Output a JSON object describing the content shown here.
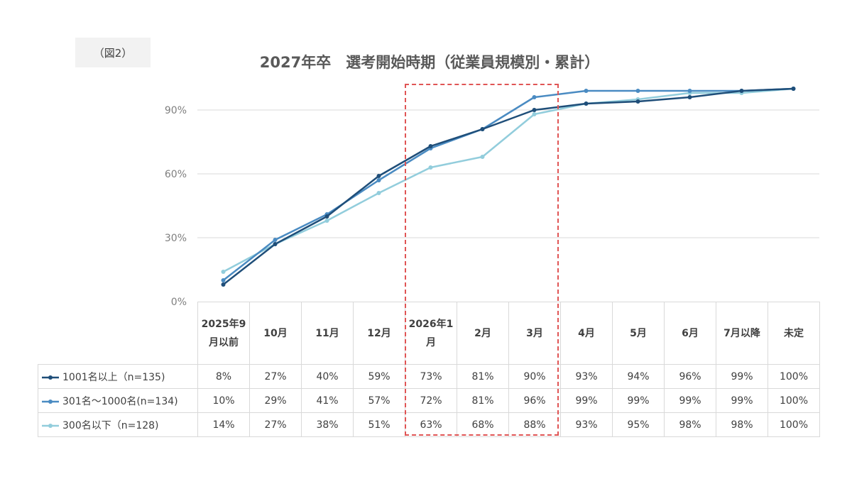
{
  "figure_label": "（図2）",
  "chart_data": {
    "type": "line",
    "title": "2027年卒　選考開始時期（従業員規模別・累計）",
    "categories": [
      "2025年9月以前",
      "10月",
      "11月",
      "12月",
      "2026年1月",
      "2月",
      "3月",
      "4月",
      "5月",
      "6月",
      "7月以降",
      "未定"
    ],
    "y_ticks": [
      "0%",
      "30%",
      "60%",
      "90%"
    ],
    "ylim": [
      0,
      100
    ],
    "grid": "horizontal",
    "series": [
      {
        "name": "1001名以上（n=135)",
        "color": "#1f4e79",
        "values": [
          8,
          27,
          40,
          59,
          73,
          81,
          90,
          93,
          94,
          96,
          99,
          100
        ],
        "labels": [
          "8%",
          "27%",
          "40%",
          "59%",
          "73%",
          "81%",
          "90%",
          "93%",
          "94%",
          "96%",
          "99%",
          "100%"
        ]
      },
      {
        "name": "301名～1000名(n=134)",
        "color": "#4a8bc2",
        "values": [
          10,
          29,
          41,
          57,
          72,
          81,
          96,
          99,
          99,
          99,
          99,
          100
        ],
        "labels": [
          "10%",
          "29%",
          "41%",
          "57%",
          "72%",
          "81%",
          "96%",
          "99%",
          "99%",
          "99%",
          "99%",
          "100%"
        ]
      },
      {
        "name": "300名以下（n=128)",
        "color": "#92cddc",
        "values": [
          14,
          27,
          38,
          51,
          63,
          68,
          88,
          93,
          95,
          98,
          98,
          100
        ],
        "labels": [
          "14%",
          "27%",
          "38%",
          "51%",
          "63%",
          "68%",
          "88%",
          "93%",
          "95%",
          "98%",
          "98%",
          "100%"
        ]
      }
    ],
    "highlight": [
      "2026年1月",
      "2月",
      "3月"
    ]
  }
}
